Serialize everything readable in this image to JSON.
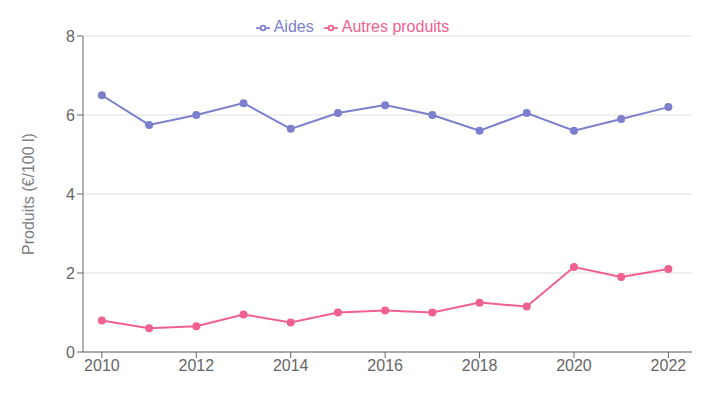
{
  "chart_data": {
    "type": "line",
    "x": [
      2010,
      2011,
      2012,
      2013,
      2014,
      2015,
      2016,
      2017,
      2018,
      2019,
      2020,
      2021,
      2022
    ],
    "series": [
      {
        "name": "Aides",
        "color": "#7b7fcd",
        "marker": "circle",
        "values": [
          6.5,
          5.75,
          6.0,
          6.3,
          5.65,
          6.05,
          6.25,
          6.0,
          5.6,
          6.05,
          5.6,
          5.9,
          6.2
        ]
      },
      {
        "name": "Autres produits",
        "color": "#f06090",
        "marker": "circle",
        "values": [
          0.8,
          0.6,
          0.65,
          0.95,
          0.75,
          1.0,
          1.05,
          1.0,
          1.25,
          1.15,
          2.15,
          1.9,
          2.1
        ]
      }
    ],
    "ylabel": "Produits (€/100 l)",
    "xlim": [
      2009.6,
      2022.5
    ],
    "xticks": [
      2010,
      2012,
      2014,
      2016,
      2018,
      2020,
      2022
    ],
    "ylim": [
      0,
      8
    ],
    "yticks": [
      0,
      2,
      4,
      6,
      8
    ],
    "grid": true,
    "legend": "top"
  }
}
